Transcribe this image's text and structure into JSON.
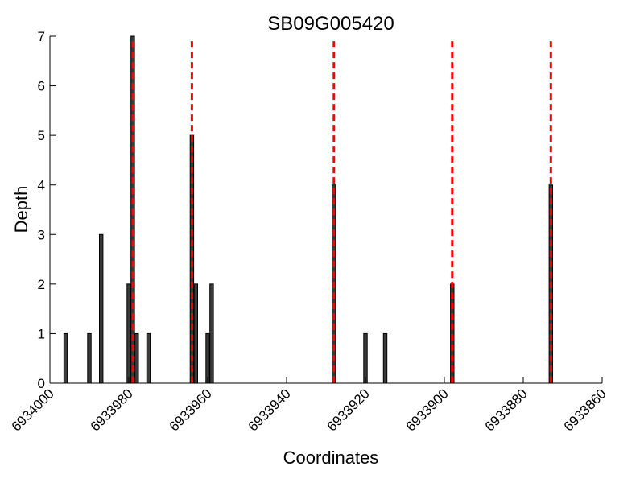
{
  "chart_data": {
    "type": "bar",
    "title": "SB09G005420",
    "xlabel": "Coordinates",
    "ylabel": "Depth",
    "xlim": [
      6934000,
      6933860
    ],
    "x_reversed": true,
    "ylim": [
      0,
      7
    ],
    "xticks": [
      6934000,
      6933980,
      6933960,
      6933940,
      6933920,
      6933900,
      6933880,
      6933860
    ],
    "xtick_labels": [
      "6934000",
      "6933980",
      "6933960",
      "6933940",
      "6933920",
      "6933900",
      "6933880",
      "6933860"
    ],
    "yticks": [
      0,
      1,
      2,
      3,
      4,
      5,
      6,
      7
    ],
    "ytick_labels": [
      "0",
      "1",
      "2",
      "3",
      "4",
      "5",
      "6",
      "7"
    ],
    "bar_color": "#3a3a3a",
    "bars": [
      {
        "x": 6933996,
        "y": 1
      },
      {
        "x": 6933990,
        "y": 1
      },
      {
        "x": 6933987,
        "y": 3
      },
      {
        "x": 6933980,
        "y": 2
      },
      {
        "x": 6933979,
        "y": 7
      },
      {
        "x": 6933978,
        "y": 1
      },
      {
        "x": 6933975,
        "y": 1
      },
      {
        "x": 6933964,
        "y": 5
      },
      {
        "x": 6933963,
        "y": 2
      },
      {
        "x": 6933960,
        "y": 1
      },
      {
        "x": 6933959,
        "y": 2
      },
      {
        "x": 6933928,
        "y": 4
      },
      {
        "x": 6933920,
        "y": 1
      },
      {
        "x": 6933915,
        "y": 1
      },
      {
        "x": 6933898,
        "y": 2
      },
      {
        "x": 6933873,
        "y": 4
      }
    ],
    "vlines": {
      "color": "#ff0000",
      "style": "dashed",
      "x": [
        6933979,
        6933964,
        6933928,
        6933898,
        6933873
      ]
    }
  }
}
